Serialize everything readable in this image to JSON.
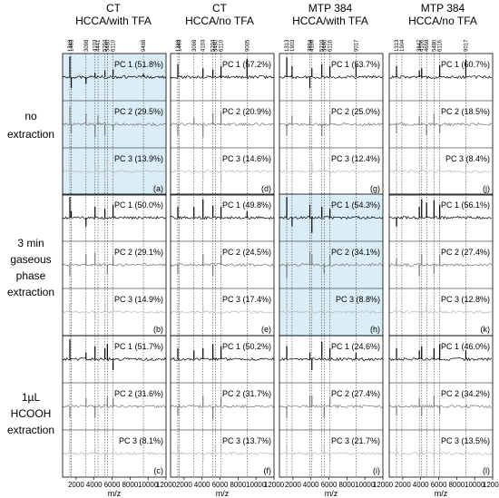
{
  "columns": [
    {
      "line1": "CT",
      "line2": "HCCA/with TFA"
    },
    {
      "line1": "CT",
      "line2": "HCCA/no TFA"
    },
    {
      "line1": "MTP 384",
      "line2": "HCCA/with TFA"
    },
    {
      "line1": "MTP 384",
      "line2": "HCCA/no TFA"
    }
  ],
  "rows": [
    {
      "lines": [
        "no",
        "extraction"
      ]
    },
    {
      "lines": [
        "3 min",
        "gaseous",
        "phase",
        "extraction"
      ]
    },
    {
      "lines": [
        "1µL",
        "HCOOH",
        "extraction"
      ]
    }
  ],
  "x_axis_label": "m/z",
  "x_tick_labels": [
    "2000",
    "4000",
    "6000",
    "8000",
    "10000",
    "12000"
  ],
  "highlight_color": "#dbeef8",
  "trace_colors": [
    "#000000",
    "#777777",
    "#bbbbbb"
  ],
  "chart_data": {
    "type": "line",
    "x_range": [
      500,
      12000
    ],
    "x_ticks": [
      2000,
      4000,
      6000,
      8000,
      10000,
      12000
    ],
    "highlighted_panels": [
      "a",
      "h"
    ],
    "panels": [
      {
        "id": "a",
        "label": "(a)",
        "col": 0,
        "row": 0,
        "pc": [
          "PC 1 (51.8%)",
          "PC 2 (29.5%)",
          "PC 3 (13.9%)"
        ]
      },
      {
        "id": "d",
        "label": "(d)",
        "col": 1,
        "row": 0,
        "pc": [
          "PC 1 (57.2%)",
          "PC 2 (20.9%)",
          "PC 3 (14.6%)"
        ]
      },
      {
        "id": "g",
        "label": "(g)",
        "col": 2,
        "row": 0,
        "pc": [
          "PC 1 (53.7%)",
          "PC 2 (25.0%)",
          "PC 3 (12.4%)"
        ]
      },
      {
        "id": "j",
        "label": "(j)",
        "col": 3,
        "row": 0,
        "pc": [
          "PC 1 (60.7%)",
          "PC 2 (18.5%)",
          "PC 3 (8.4%)"
        ]
      },
      {
        "id": "b",
        "label": "(b)",
        "col": 0,
        "row": 1,
        "pc": [
          "PC 1 (50.0%)",
          "PC 2 (29.1%)",
          "PC 3 (14.9%)"
        ]
      },
      {
        "id": "e",
        "label": "(e)",
        "col": 1,
        "row": 1,
        "pc": [
          "PC 1 (49.8%)",
          "PC 2 (24.5%)",
          "PC 3 (17.4%)"
        ]
      },
      {
        "id": "h",
        "label": "(h)",
        "col": 2,
        "row": 1,
        "pc": [
          "PC 1 (54.3%)",
          "PC 2 (34.1%)",
          "PC 3 (8.8%)"
        ]
      },
      {
        "id": "k",
        "label": "(k)",
        "col": 3,
        "row": 1,
        "pc": [
          "PC 1 (56.1%)",
          "PC 2 (27.4%)",
          "PC 3 (12.8%)"
        ]
      },
      {
        "id": "c",
        "label": "(c)",
        "col": 0,
        "row": 2,
        "pc": [
          "PC 1 (51.7%)",
          "PC 2 (31.6%)",
          "PC 3 (8.1%)"
        ]
      },
      {
        "id": "f",
        "label": "(f)",
        "col": 1,
        "row": 2,
        "pc": [
          "PC 1 (50.2%)",
          "PC 2 (31.7%)",
          "PC 3 (13.7%)"
        ]
      },
      {
        "id": "i",
        "label": "(i)",
        "col": 2,
        "row": 2,
        "pc": [
          "PC 1 (24.6%)",
          "PC 2 (27.4%)",
          "PC 3 (21.7%)"
        ]
      },
      {
        "id": "l",
        "label": "(l)",
        "col": 3,
        "row": 2,
        "pc": [
          "PC 1 (46.0%)",
          "PC 2 (34.2%)",
          "PC 3 (13.5%)"
        ]
      }
    ],
    "marker_lines": [
      {
        "col": 0,
        "labels": [
          "1310",
          "1463",
          "3098",
          "4103",
          "4441",
          "5204",
          "5480",
          "6110",
          "9488"
        ],
        "mz": [
          1310,
          1463,
          3098,
          4103,
          4441,
          5204,
          5480,
          6110,
          9488
        ]
      },
      {
        "col": 1,
        "labels": [
          "1310",
          "1463",
          "3098",
          "4103",
          "5204",
          "5480",
          "6110",
          "9005"
        ],
        "mz": [
          1310,
          1463,
          3098,
          4103,
          5204,
          5480,
          6110,
          9005
        ]
      },
      {
        "col": 2,
        "labels": [
          "1313",
          "1903",
          "3884",
          "4106",
          "5210",
          "5480",
          "6116",
          "9017"
        ],
        "mz": [
          1313,
          1903,
          3884,
          4106,
          5210,
          5480,
          6116,
          9017
        ]
      },
      {
        "col": 3,
        "labels": [
          "1313",
          "1904",
          "3847",
          "4106",
          "4658",
          "5480",
          "6116",
          "9017"
        ],
        "mz": [
          1313,
          1904,
          3847,
          4106,
          4658,
          5480,
          6116,
          9017
        ]
      }
    ],
    "spectra": [
      {
        "panel": "a",
        "pc": 1,
        "peaks": [
          [
            1310,
            0.95
          ],
          [
            1463,
            -0.5
          ],
          [
            3098,
            -0.3
          ],
          [
            4103,
            0.2
          ],
          [
            5204,
            0.3
          ],
          [
            6110,
            0.35
          ],
          [
            9488,
            0.15
          ]
        ]
      },
      {
        "panel": "a",
        "pc": 2,
        "peaks": [
          [
            1310,
            0.8
          ],
          [
            1463,
            -0.4
          ],
          [
            3098,
            0.5
          ],
          [
            4103,
            -0.6
          ],
          [
            4441,
            0.4
          ],
          [
            5204,
            -0.5
          ],
          [
            6110,
            -0.3
          ]
        ]
      },
      {
        "panel": "a",
        "pc": 3,
        "peaks": [
          [
            1310,
            -0.5
          ],
          [
            1463,
            0.4
          ],
          [
            4103,
            0.35
          ],
          [
            5204,
            -0.4
          ],
          [
            5480,
            0.5
          ],
          [
            6110,
            -0.3
          ]
        ]
      },
      {
        "panel": "d",
        "pc": 1,
        "peaks": [
          [
            1310,
            0.6
          ],
          [
            4103,
            0.4
          ],
          [
            5204,
            0.35
          ],
          [
            6110,
            0.5
          ],
          [
            9005,
            0.85
          ]
        ]
      },
      {
        "panel": "d",
        "pc": 2,
        "peaks": [
          [
            1310,
            -0.5
          ],
          [
            3098,
            0.3
          ],
          [
            4103,
            -0.6
          ],
          [
            5204,
            0.5
          ],
          [
            6110,
            0.55
          ]
        ]
      },
      {
        "panel": "d",
        "pc": 3,
        "peaks": [
          [
            1310,
            0.45
          ],
          [
            4103,
            -0.4
          ],
          [
            5480,
            0.5
          ],
          [
            6110,
            -0.45
          ]
        ]
      },
      {
        "panel": "g",
        "pc": 1,
        "peaks": [
          [
            1313,
            0.9
          ],
          [
            1903,
            0.5
          ],
          [
            3884,
            -0.5
          ],
          [
            4106,
            0.4
          ],
          [
            5210,
            0.6
          ],
          [
            6116,
            0.5
          ],
          [
            9017,
            0.6
          ]
        ]
      },
      {
        "panel": "g",
        "pc": 2,
        "peaks": [
          [
            1313,
            -0.5
          ],
          [
            1903,
            0.4
          ],
          [
            3884,
            0.4
          ],
          [
            5210,
            -0.55
          ],
          [
            6116,
            0.45
          ]
        ]
      },
      {
        "panel": "g",
        "pc": 3,
        "peaks": [
          [
            1313,
            0.35
          ],
          [
            3884,
            -0.3
          ],
          [
            4106,
            0.4
          ],
          [
            5480,
            0.5
          ],
          [
            6116,
            -0.3
          ]
        ]
      },
      {
        "panel": "j",
        "pc": 1,
        "peaks": [
          [
            1313,
            0.5
          ],
          [
            3847,
            0.3
          ],
          [
            4106,
            0.4
          ],
          [
            6116,
            0.55
          ],
          [
            9017,
            0.8
          ]
        ]
      },
      {
        "panel": "j",
        "pc": 2,
        "peaks": [
          [
            1313,
            -0.4
          ],
          [
            3847,
            0.35
          ],
          [
            4658,
            -0.5
          ],
          [
            5480,
            0.45
          ],
          [
            6116,
            -0.4
          ]
        ]
      },
      {
        "panel": "j",
        "pc": 3,
        "peaks": [
          [
            1313,
            0.35
          ],
          [
            4106,
            0.3
          ],
          [
            5480,
            -0.35
          ],
          [
            6116,
            0.3
          ]
        ]
      },
      {
        "panel": "b",
        "pc": 1,
        "peaks": [
          [
            1310,
            0.95
          ],
          [
            1463,
            0.3
          ],
          [
            3098,
            -0.4
          ],
          [
            4103,
            0.5
          ],
          [
            5204,
            0.4
          ],
          [
            6110,
            0.6
          ]
        ]
      },
      {
        "panel": "b",
        "pc": 2,
        "peaks": [
          [
            1310,
            -0.5
          ],
          [
            3098,
            0.5
          ],
          [
            4103,
            0.55
          ],
          [
            5480,
            -0.45
          ],
          [
            6110,
            0.4
          ]
        ]
      },
      {
        "panel": "b",
        "pc": 3,
        "peaks": [
          [
            1310,
            0.4
          ],
          [
            4103,
            -0.4
          ],
          [
            5204,
            0.4
          ],
          [
            6110,
            0.3
          ]
        ]
      },
      {
        "panel": "e",
        "pc": 1,
        "peaks": [
          [
            1310,
            0.5
          ],
          [
            3098,
            0.5
          ],
          [
            4103,
            0.85
          ],
          [
            5204,
            0.55
          ],
          [
            6110,
            0.5
          ],
          [
            9005,
            0.3
          ]
        ]
      },
      {
        "panel": "e",
        "pc": 2,
        "peaks": [
          [
            1310,
            -0.4
          ],
          [
            4103,
            0.5
          ],
          [
            5204,
            -0.5
          ],
          [
            6110,
            0.45
          ]
        ]
      },
      {
        "panel": "e",
        "pc": 3,
        "peaks": [
          [
            1310,
            0.35
          ],
          [
            4103,
            0.3
          ],
          [
            5480,
            0.4
          ],
          [
            6110,
            -0.3
          ]
        ]
      },
      {
        "panel": "h",
        "pc": 1,
        "peaks": [
          [
            1313,
            0.95
          ],
          [
            1903,
            -0.4
          ],
          [
            3884,
            0.6
          ],
          [
            4106,
            -0.7
          ],
          [
            5210,
            0.5
          ],
          [
            6116,
            0.4
          ]
        ]
      },
      {
        "panel": "h",
        "pc": 2,
        "peaks": [
          [
            1313,
            -0.6
          ],
          [
            3884,
            0.6
          ],
          [
            4106,
            0.5
          ],
          [
            5480,
            -0.4
          ],
          [
            6116,
            0.45
          ]
        ]
      },
      {
        "panel": "h",
        "pc": 3,
        "peaks": [
          [
            1313,
            0.4
          ],
          [
            3884,
            -0.35
          ],
          [
            4106,
            0.3
          ],
          [
            5480,
            0.4
          ],
          [
            6116,
            -0.3
          ]
        ]
      },
      {
        "panel": "k",
        "pc": 1,
        "peaks": [
          [
            1313,
            -0.4
          ],
          [
            3847,
            0.5
          ],
          [
            4106,
            0.85
          ],
          [
            4658,
            0.7
          ],
          [
            5480,
            0.8
          ],
          [
            6116,
            0.6
          ]
        ]
      },
      {
        "panel": "k",
        "pc": 2,
        "peaks": [
          [
            1313,
            0.3
          ],
          [
            3847,
            -0.5
          ],
          [
            4106,
            0.5
          ],
          [
            5480,
            -0.4
          ],
          [
            6116,
            0.45
          ]
        ]
      },
      {
        "panel": "k",
        "pc": 3,
        "peaks": [
          [
            1313,
            0.3
          ],
          [
            4106,
            -0.3
          ],
          [
            4658,
            0.35
          ],
          [
            6116,
            0.3
          ]
        ]
      },
      {
        "panel": "c",
        "pc": 1,
        "peaks": [
          [
            1310,
            0.9
          ],
          [
            3098,
            0.3
          ],
          [
            4103,
            0.6
          ],
          [
            5204,
            0.5
          ],
          [
            5480,
            0.7
          ],
          [
            6110,
            -0.5
          ]
        ]
      },
      {
        "panel": "c",
        "pc": 2,
        "peaks": [
          [
            1310,
            -0.5
          ],
          [
            3098,
            0.4
          ],
          [
            4103,
            -0.5
          ],
          [
            5480,
            0.45
          ],
          [
            6110,
            0.4
          ]
        ]
      },
      {
        "panel": "c",
        "pc": 3,
        "peaks": [
          [
            1310,
            0.45
          ],
          [
            4103,
            0.3
          ],
          [
            5204,
            -0.4
          ],
          [
            6110,
            0.3
          ]
        ]
      },
      {
        "panel": "f",
        "pc": 1,
        "peaks": [
          [
            1310,
            0.5
          ],
          [
            3098,
            0.4
          ],
          [
            4103,
            0.5
          ],
          [
            5204,
            0.7
          ],
          [
            6110,
            0.6
          ]
        ]
      },
      {
        "panel": "f",
        "pc": 2,
        "peaks": [
          [
            1310,
            -0.4
          ],
          [
            4103,
            0.5
          ],
          [
            5204,
            -0.6
          ],
          [
            6110,
            0.4
          ]
        ]
      },
      {
        "panel": "f",
        "pc": 3,
        "peaks": [
          [
            1310,
            0.4
          ],
          [
            4103,
            -0.3
          ],
          [
            5480,
            0.4
          ],
          [
            6110,
            0.35
          ]
        ]
      },
      {
        "panel": "i",
        "pc": 1,
        "peaks": [
          [
            1313,
            0.6
          ],
          [
            3884,
            0.3
          ],
          [
            4106,
            -0.5
          ],
          [
            5210,
            0.8
          ],
          [
            6116,
            0.5
          ],
          [
            9017,
            0.3
          ]
        ]
      },
      {
        "panel": "i",
        "pc": 2,
        "peaks": [
          [
            1313,
            -0.5
          ],
          [
            3884,
            0.5
          ],
          [
            4106,
            0.5
          ],
          [
            5480,
            -0.5
          ],
          [
            6116,
            0.4
          ]
        ]
      },
      {
        "panel": "i",
        "pc": 3,
        "peaks": [
          [
            1313,
            0.35
          ],
          [
            4106,
            -0.3
          ],
          [
            5480,
            0.45
          ],
          [
            6116,
            -0.35
          ]
        ]
      },
      {
        "panel": "l",
        "pc": 1,
        "peaks": [
          [
            1313,
            0.5
          ],
          [
            3847,
            0.4
          ],
          [
            4106,
            0.6
          ],
          [
            5480,
            0.5
          ],
          [
            6116,
            0.7
          ],
          [
            9017,
            0.4
          ]
        ]
      },
      {
        "panel": "l",
        "pc": 2,
        "peaks": [
          [
            1313,
            -0.4
          ],
          [
            3847,
            0.4
          ],
          [
            4106,
            -0.45
          ],
          [
            5480,
            0.5
          ],
          [
            6116,
            -0.35
          ]
        ]
      },
      {
        "panel": "l",
        "pc": 3,
        "peaks": [
          [
            1313,
            0.3
          ],
          [
            4106,
            0.3
          ],
          [
            5480,
            -0.3
          ],
          [
            6116,
            0.3
          ]
        ]
      }
    ]
  }
}
